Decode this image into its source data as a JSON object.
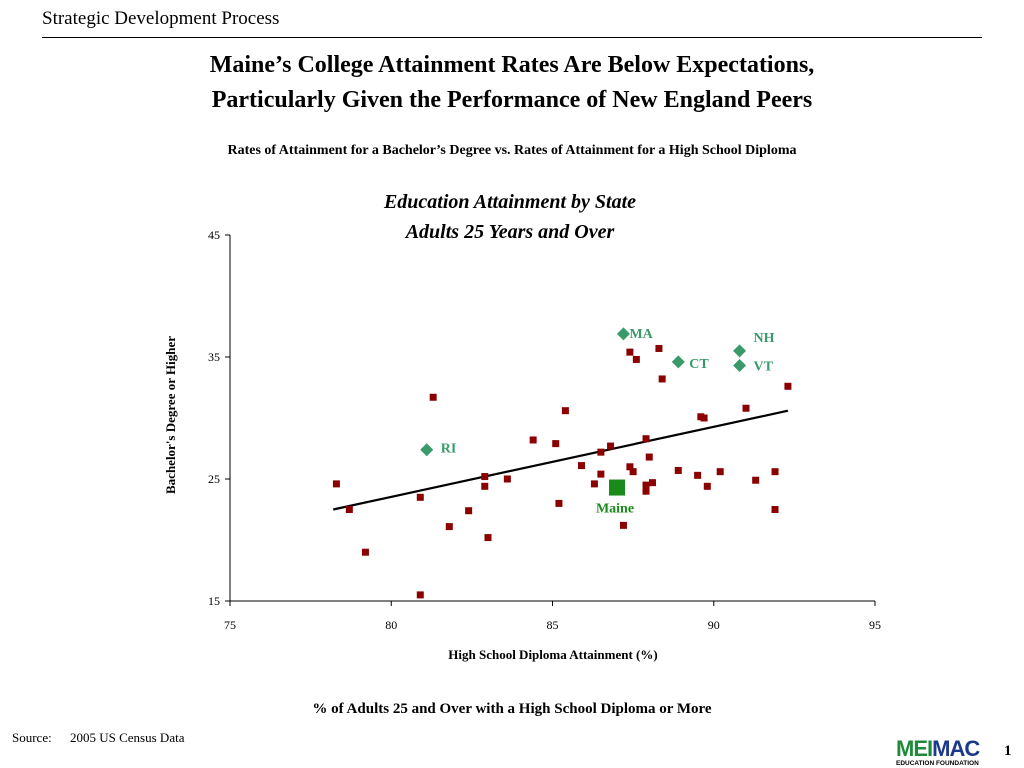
{
  "header": {
    "section": "Strategic Development Process"
  },
  "slide": {
    "title_line1": "Maine’s College Attainment Rates Are Below Expectations,",
    "title_line2": "Particularly Given the Performance of  New England Peers",
    "subtitle": "Rates of Attainment for a Bachelor’s Degree vs. Rates of Attainment for a High School Diploma",
    "footer": "% of Adults 25 and Over with a High School Diploma or More",
    "source_label": "Source:",
    "source_value": "2005 US Census Data",
    "page_number": "1"
  },
  "logo": {
    "part1": "MEI",
    "part2": "MAC",
    "subtext": "EDUCATION FOUNDATION"
  },
  "colors": {
    "state": "#8b0000",
    "peer": "#3a9a6a",
    "maine": "#1a8a1a",
    "trend": "#000000"
  },
  "chart_data": {
    "type": "scatter",
    "title": "Education Attainment by State",
    "subtitle": "Adults 25 Years and Over",
    "xlabel": "High School Diploma Attainment (%)",
    "ylabel": "Bachelor's Degree or Higher",
    "xlim": [
      75,
      95
    ],
    "ylim": [
      15,
      45
    ],
    "xticks": [
      75,
      80,
      85,
      90,
      95
    ],
    "yticks": [
      15,
      25,
      35,
      45
    ],
    "grid": false,
    "states": [
      [
        78.3,
        24.6
      ],
      [
        78.7,
        22.5
      ],
      [
        79.2,
        19.0
      ],
      [
        80.9,
        15.5
      ],
      [
        80.9,
        23.5
      ],
      [
        81.3,
        31.7
      ],
      [
        81.8,
        21.1
      ],
      [
        82.4,
        22.4
      ],
      [
        82.9,
        25.2
      ],
      [
        82.9,
        24.4
      ],
      [
        83.0,
        20.2
      ],
      [
        83.6,
        25.0
      ],
      [
        84.4,
        28.2
      ],
      [
        85.1,
        27.9
      ],
      [
        85.2,
        23.0
      ],
      [
        85.4,
        30.6
      ],
      [
        85.9,
        26.1
      ],
      [
        86.3,
        24.6
      ],
      [
        86.5,
        27.2
      ],
      [
        86.5,
        25.4
      ],
      [
        86.8,
        27.7
      ],
      [
        87.2,
        21.2
      ],
      [
        87.4,
        35.4
      ],
      [
        87.4,
        26.0
      ],
      [
        87.5,
        25.6
      ],
      [
        87.6,
        34.8
      ],
      [
        87.9,
        28.3
      ],
      [
        87.9,
        24.5
      ],
      [
        87.9,
        24.0
      ],
      [
        88.0,
        26.8
      ],
      [
        88.1,
        24.7
      ],
      [
        88.3,
        35.7
      ],
      [
        88.4,
        33.2
      ],
      [
        88.9,
        25.7
      ],
      [
        89.5,
        25.3
      ],
      [
        89.6,
        30.1
      ],
      [
        89.7,
        30.0
      ],
      [
        89.8,
        24.4
      ],
      [
        90.2,
        25.6
      ],
      [
        91.0,
        30.8
      ],
      [
        91.3,
        24.9
      ],
      [
        91.9,
        25.6
      ],
      [
        91.9,
        22.5
      ],
      [
        92.3,
        32.6
      ]
    ],
    "peers": [
      {
        "label": "MA",
        "x": 87.2,
        "y": 36.9
      },
      {
        "label": "CT",
        "x": 88.9,
        "y": 34.6
      },
      {
        "label": "NH",
        "x": 90.8,
        "y": 35.5
      },
      {
        "label": "VT",
        "x": 90.8,
        "y": 34.3
      },
      {
        "label": "RI",
        "x": 81.1,
        "y": 27.4
      }
    ],
    "maine": {
      "label": "Maine",
      "x": 87.0,
      "y": 24.3
    },
    "trendline": {
      "x1": 78.2,
      "y1": 22.5,
      "x2": 92.3,
      "y2": 30.6
    }
  }
}
